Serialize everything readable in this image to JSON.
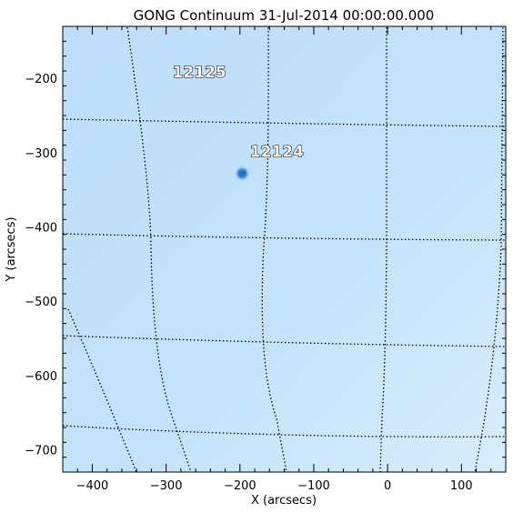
{
  "title": "GONG Continuum 31-Jul-2014 00:00:00.000",
  "xaxis": {
    "label": "X (arcsecs)",
    "range": [
      -440,
      160
    ],
    "ticks": [
      {
        "value": -400,
        "label": "−400"
      },
      {
        "value": -300,
        "label": "−300"
      },
      {
        "value": -200,
        "label": "−200"
      },
      {
        "value": -100,
        "label": "−100"
      },
      {
        "value": 0,
        "label": "0"
      },
      {
        "value": 100,
        "label": "100"
      }
    ]
  },
  "yaxis": {
    "label": "Y (arcsecs)",
    "range": [
      -730,
      -130
    ],
    "ticks": [
      {
        "value": -200,
        "label": "−200"
      },
      {
        "value": -300,
        "label": "−300"
      },
      {
        "value": -400,
        "label": "−400"
      },
      {
        "value": -500,
        "label": "−500"
      },
      {
        "value": -600,
        "label": "−600"
      },
      {
        "value": -700,
        "label": "−700"
      }
    ]
  },
  "regions": [
    {
      "number": "12125",
      "x": -255,
      "y": -190
    },
    {
      "number": "12124",
      "x": -150,
      "y": -297
    }
  ],
  "sunspot": {
    "x": -197,
    "y": -328
  },
  "colors": {
    "disk": "#c2e2fb",
    "disk_light": "#d6ecfc",
    "spot": "#1f73c9"
  }
}
